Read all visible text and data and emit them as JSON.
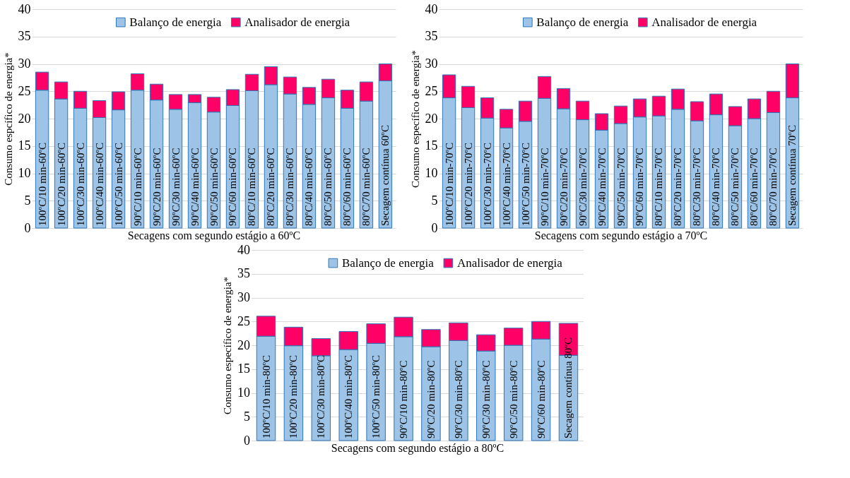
{
  "chart_data": [
    {
      "type": "bar",
      "stacked": true,
      "xlabel": "Secagens com segundo estágio a 60ºC",
      "ylabel": "Consumo espcífico de energia*",
      "categories": [
        "100ºC/10 min-60ºC",
        "100ºC/20 min-60ºC",
        "100ºC/30 min-60ºC",
        "100ºC/40 min-60ºC",
        "100ºC/50 min-60ºC",
        "90ºC/10 min-60ºC",
        "90ºC/20 min-60ºC",
        "90ºC/30 min-60ºC",
        "90ºC/40 min-60ºC",
        "90ºC/50 min-60ºC",
        "90ºC/60 min-60ºC",
        "80ºC/10 min-60ºC",
        "80ºC/20 min-60ºC",
        "80ºC/30 min-60ºC",
        "80ºC/40 min-60ºC",
        "80ºC/50 min-60ºC",
        "80ºC/60 min-60ºC",
        "80ºC/70 min-60ºC",
        "Secagem contínua 60ºC"
      ],
      "series": [
        {
          "name": "Balanço de energia",
          "color": "#9dc3e6",
          "values": [
            25.2,
            23.6,
            21.9,
            20.2,
            21.6,
            25.2,
            23.4,
            21.7,
            22.9,
            21.2,
            22.4,
            25.1,
            26.2,
            24.5,
            22.6,
            23.8,
            21.9,
            23.2,
            26.9
          ]
        },
        {
          "name": "Analisador de energia",
          "color": "#ff0066",
          "values": [
            3.3,
            3.1,
            3.1,
            3.1,
            3.3,
            3.0,
            2.9,
            2.7,
            1.5,
            2.7,
            2.9,
            3.0,
            3.3,
            3.1,
            3.1,
            3.4,
            3.3,
            3.5,
            3.1
          ]
        }
      ],
      "ylim": [
        0,
        40
      ],
      "yticks": [
        0,
        5,
        10,
        15,
        20,
        25,
        30,
        35,
        40
      ],
      "grid": "y",
      "legend": "top"
    },
    {
      "type": "bar",
      "stacked": true,
      "xlabel": "Secagens com segundo estágio a 70ºC",
      "ylabel": "Consumo específico de energia*",
      "categories": [
        "100ºC/10 min-70ºC",
        "100ºC/20 min-70ºC",
        "100ºC/30 min-70ºC",
        "100ºC/40 min-70ºC",
        "100ºC/50 min-70ºC",
        "90ºC/10 min-70ºC",
        "90ºC/20 min-70ºC",
        "90ºC/30 min-70ºC",
        "90ºC/40 min-70ºC",
        "90ºC/50 min-70ºC",
        "90ºC/60 min-70ºC",
        "80ºC/10 min-70ºC",
        "80ºC/20 min-70ºC",
        "80ºC/30 min-70ºC",
        "80ºC/40 min-70ºC",
        "80ºC/50 min-70ºC",
        "80ºC/60 min-70ºC",
        "80ºC/70 min-70ºC",
        "Secagem contínua 70ºC"
      ],
      "series": [
        {
          "name": "Balanço de energia",
          "color": "#9dc3e6",
          "values": [
            23.8,
            22.0,
            20.1,
            18.3,
            19.5,
            23.7,
            21.8,
            19.8,
            17.9,
            19.1,
            20.3,
            20.5,
            21.7,
            19.6,
            20.7,
            18.7,
            20.0,
            21.1,
            23.8
          ]
        },
        {
          "name": "Analisador de energia",
          "color": "#ff0066",
          "values": [
            4.2,
            3.9,
            3.7,
            3.4,
            3.7,
            4.0,
            3.7,
            3.4,
            3.0,
            3.2,
            3.3,
            3.6,
            3.7,
            3.5,
            3.8,
            3.5,
            3.6,
            3.9,
            6.2
          ]
        }
      ],
      "ylim": [
        0,
        40
      ],
      "yticks": [
        0,
        5,
        10,
        15,
        20,
        25,
        30,
        35,
        40
      ],
      "grid": "y",
      "legend": "top"
    },
    {
      "type": "bar",
      "stacked": true,
      "xlabel": "Secagens com segundo estágio a 80ºC",
      "ylabel": "Consumo específico de energia*",
      "categories": [
        "100ºC/10 min-80ºC",
        "100ºC/20 min-80ºC",
        "100ºC/30 min-80ºC",
        "100ºC/40 min-80ºC",
        "100ºC/50 min-80ºC",
        "90ºC/10 min-80ºC",
        "90ºC/20 min-80ºC",
        "90ºC/30 min-80ºC",
        "90ºC/30 min-80ºC",
        "90ºC/50 min-80ºC",
        "90ºC/60 min-80ºC",
        "Secagem contínua 80ºC"
      ],
      "series": [
        {
          "name": "Balanço de energia",
          "color": "#9dc3e6",
          "values": [
            21.9,
            19.9,
            17.8,
            19.1,
            20.4,
            21.8,
            19.7,
            21.0,
            18.8,
            20.0,
            21.3,
            17.9
          ]
        },
        {
          "name": "Analisador de energia",
          "color": "#ff0066",
          "values": [
            4.2,
            3.9,
            3.6,
            3.8,
            4.1,
            4.1,
            3.6,
            3.7,
            3.4,
            3.6,
            3.7,
            6.7
          ]
        }
      ],
      "ylim": [
        0,
        40
      ],
      "yticks": [
        0,
        5,
        10,
        15,
        20,
        25,
        30,
        35,
        40
      ],
      "grid": "y",
      "legend": "top"
    }
  ]
}
